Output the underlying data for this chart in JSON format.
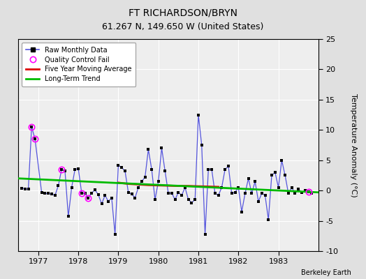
{
  "title": "FT RICHARDSON/BRYN",
  "subtitle": "61.267 N, 149.650 W (United States)",
  "credit": "Berkeley Earth",
  "ylabel": "Temperature Anomaly (°C)",
  "ylim": [
    -10,
    25
  ],
  "yticks": [
    -10,
    -5,
    0,
    5,
    10,
    15,
    20,
    25
  ],
  "xlim": [
    1976.5,
    1984.0
  ],
  "xticks": [
    1977,
    1978,
    1979,
    1980,
    1981,
    1982,
    1983
  ],
  "raw_x": [
    1976.583,
    1976.667,
    1976.75,
    1976.833,
    1976.917,
    1977.083,
    1977.167,
    1977.25,
    1977.333,
    1977.417,
    1977.5,
    1977.583,
    1977.667,
    1977.75,
    1977.833,
    1977.917,
    1978.0,
    1978.083,
    1978.167,
    1978.25,
    1978.333,
    1978.417,
    1978.5,
    1978.583,
    1978.667,
    1978.75,
    1978.833,
    1978.917,
    1979.0,
    1979.083,
    1979.167,
    1979.25,
    1979.333,
    1979.417,
    1979.5,
    1979.583,
    1979.667,
    1979.75,
    1979.833,
    1979.917,
    1980.0,
    1980.083,
    1980.167,
    1980.25,
    1980.333,
    1980.417,
    1980.5,
    1980.583,
    1980.667,
    1980.75,
    1980.833,
    1980.917,
    1981.0,
    1981.083,
    1981.167,
    1981.25,
    1981.333,
    1981.417,
    1981.5,
    1981.583,
    1981.667,
    1981.75,
    1981.833,
    1981.917,
    1982.0,
    1982.083,
    1982.167,
    1982.25,
    1982.333,
    1982.417,
    1982.5,
    1982.583,
    1982.667,
    1982.75,
    1982.833,
    1982.917,
    1983.0,
    1983.083,
    1983.167,
    1983.25,
    1983.333,
    1983.417,
    1983.5,
    1983.583,
    1983.667,
    1983.75,
    1983.833
  ],
  "raw_y": [
    0.4,
    0.3,
    0.2,
    10.5,
    8.5,
    -0.3,
    -0.5,
    -0.5,
    -0.6,
    -0.8,
    0.8,
    3.5,
    3.2,
    -4.3,
    0.5,
    3.5,
    3.6,
    -0.4,
    -0.5,
    -1.2,
    -0.4,
    0.1,
    -0.7,
    -2.2,
    -0.8,
    -1.8,
    -1.2,
    -7.2,
    4.2,
    3.8,
    3.2,
    -0.3,
    -0.6,
    -1.2,
    0.5,
    1.5,
    2.2,
    6.8,
    3.5,
    -1.5,
    1.5,
    7.0,
    3.2,
    -0.5,
    -0.4,
    -1.5,
    -0.3,
    -0.8,
    0.5,
    -1.5,
    -2.0,
    -1.5,
    12.5,
    7.5,
    -7.2,
    3.5,
    3.5,
    -0.5,
    -0.8,
    0.5,
    3.5,
    4.0,
    -0.5,
    -0.3,
    0.5,
    -3.5,
    -0.5,
    2.0,
    -0.5,
    1.5,
    -1.8,
    -0.5,
    -0.8,
    -4.8,
    2.5,
    3.0,
    0.5,
    5.0,
    2.5,
    -0.5,
    0.5,
    -0.5,
    0.2,
    -0.3,
    0.0,
    -0.2,
    -0.4
  ],
  "qc_fail_x": [
    1976.833,
    1976.917,
    1977.583,
    1978.083,
    1978.25,
    1983.75
  ],
  "qc_fail_y": [
    10.5,
    8.5,
    3.5,
    -0.4,
    -1.2,
    -0.2
  ],
  "moving_avg_x": [
    1979.0,
    1979.25,
    1979.5,
    1979.75,
    1980.0,
    1980.25,
    1980.5,
    1980.75,
    1981.0,
    1981.25,
    1981.5
  ],
  "moving_avg_y": [
    1.3,
    1.1,
    1.0,
    0.9,
    0.85,
    0.8,
    0.75,
    0.75,
    0.7,
    0.65,
    0.6
  ],
  "trend_x": [
    1976.5,
    1984.0
  ],
  "trend_y": [
    2.0,
    -0.3
  ],
  "line_color": "#5555dd",
  "marker_color": "#000000",
  "qc_color": "#ff00ff",
  "moving_avg_color": "#dd0000",
  "trend_color": "#00bb00",
  "bg_color": "#e0e0e0",
  "plot_bg": "#eeeeee",
  "grid_color": "#ffffff",
  "title_fontsize": 10,
  "subtitle_fontsize": 9,
  "tick_fontsize": 8,
  "ylabel_fontsize": 8
}
